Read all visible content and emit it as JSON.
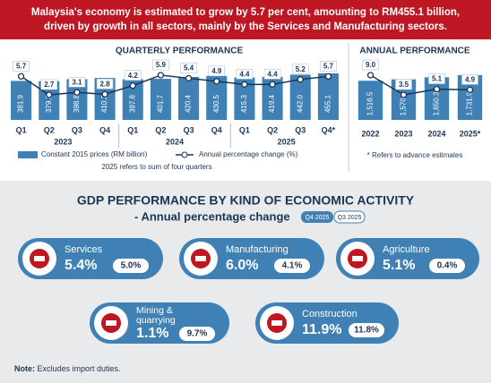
{
  "header": {
    "lines": [
      "Malaysia's economy is estimated to grow by 5.7 per cent, amounting to RM455.1 billion,",
      "driven by growth in all sectors, mainly by the Services and Manufacturing sectors."
    ]
  },
  "chart_data": [
    {
      "type": "bar_line",
      "title": "QUARTERLY PERFORMANCE",
      "categories": [
        "Q1",
        "Q2",
        "Q3",
        "Q4",
        "Q1",
        "Q2",
        "Q3",
        "Q4",
        "Q1",
        "Q2",
        "Q3",
        "Q4*"
      ],
      "group_labels": [
        "2023",
        "2024",
        "2025"
      ],
      "series": [
        {
          "name": "Constant 2015 prices (RM billion)",
          "color": "#3f80b5",
          "values": [
            381.9,
            379.3,
            398.8,
            410.2,
            397.8,
            401.7,
            420.4,
            430.5,
            415.3,
            419.4,
            442.0,
            455.1
          ],
          "value_labels": [
            "381.9",
            "379.3",
            "398.8",
            "410.2",
            "397.8",
            "401.7",
            "420.4",
            "430.5",
            "415.3",
            "419.4",
            "442.0",
            "455.1"
          ]
        },
        {
          "name": "Annual percentage change (%)",
          "color": "#1c3556",
          "axis": "y2",
          "values": [
            5.7,
            2.7,
            3.1,
            2.8,
            4.2,
            5.9,
            5.4,
            4.9,
            4.4,
            4.4,
            5.2,
            5.7
          ]
        }
      ],
      "footnote": "2025 refers to sum of four quarters"
    },
    {
      "type": "bar_line",
      "title": "ANNUAL PERFORMANCE",
      "categories": [
        "2022",
        "2023",
        "2024",
        "2025*"
      ],
      "series": [
        {
          "name": "Constant 2015 prices (RM billion)",
          "color": "#3f80b5",
          "values": [
            1516.5,
            1570.1,
            1650.3,
            1731.9
          ],
          "value_labels": [
            "1,516.5",
            "1,570.1",
            "1,650.3",
            "1,731.9"
          ]
        },
        {
          "name": "Annual percentage change (%)",
          "color": "#1c3556",
          "axis": "y2",
          "values": [
            9.0,
            3.5,
            5.1,
            4.9
          ],
          "value_labels": [
            "9.0",
            "3.5",
            "5.1",
            "4.9"
          ]
        }
      ],
      "footnote": "* Refers to advance estimates"
    }
  ],
  "sectors_section": {
    "title": "GDP PERFORMANCE BY KIND OF ECONOMIC ACTIVITY",
    "subtitle": "- Annual percentage change",
    "legend": [
      "Q4 2025",
      "Q3 2025"
    ],
    "sectors": [
      {
        "name": "Services",
        "q4": "5.4%",
        "q3": "5.0%"
      },
      {
        "name": "Manufacturing",
        "q4": "6.0%",
        "q3": "4.1%"
      },
      {
        "name": "Agriculture",
        "q4": "5.1%",
        "q3": "0.4%"
      },
      {
        "name": "Mining &\nquarrying",
        "q4": "1.1%",
        "q3": "9.7%"
      },
      {
        "name": "Construction",
        "q4": "11.9%",
        "q3": "11.8%"
      }
    ]
  },
  "note": {
    "label": "Note:",
    "text": "Excludes import duties."
  }
}
